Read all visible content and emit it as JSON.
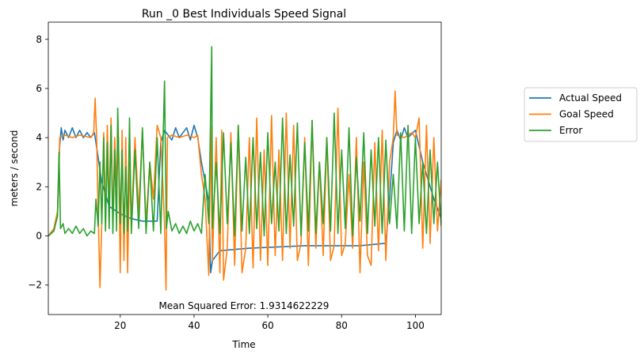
{
  "chart_data": {
    "type": "line",
    "title": "Run _0 Best Individuals Speed Signal",
    "xlabel": "Time",
    "ylabel": "meters / second",
    "xlim": [
      0.5,
      107
    ],
    "ylim": [
      -3.2,
      8.7
    ],
    "xticks": [
      20,
      40,
      60,
      80,
      100
    ],
    "yticks": [
      -2,
      0,
      2,
      4,
      6,
      8
    ],
    "grid": false,
    "legend_position": "right, outside plot",
    "annotation": "Mean Squared Error: 1.9314622229",
    "series": [
      {
        "name": "Actual Speed",
        "color": "#1f77b4",
        "points": [
          [
            0.5,
            0
          ],
          [
            2,
            0.2
          ],
          [
            3,
            0.9
          ],
          [
            3.5,
            3.5
          ],
          [
            4,
            4.4
          ],
          [
            4.5,
            3.9
          ],
          [
            5,
            4.3
          ],
          [
            6,
            4.0
          ],
          [
            7,
            4.4
          ],
          [
            8,
            4.0
          ],
          [
            9,
            4.3
          ],
          [
            10,
            4.0
          ],
          [
            11,
            4.2
          ],
          [
            12,
            4.0
          ],
          [
            13,
            4.2
          ],
          [
            14,
            3.2
          ],
          [
            15,
            2.2
          ],
          [
            17,
            1.2
          ],
          [
            20,
            0.9
          ],
          [
            23,
            0.7
          ],
          [
            26,
            0.6
          ],
          [
            30,
            0.6
          ],
          [
            31,
            3.8
          ],
          [
            32,
            4.3
          ],
          [
            34,
            3.9
          ],
          [
            35,
            4.4
          ],
          [
            36,
            4.0
          ],
          [
            38,
            4.4
          ],
          [
            39,
            3.9
          ],
          [
            40,
            4.5
          ],
          [
            41,
            4.0
          ],
          [
            42,
            3.0
          ],
          [
            43,
            2.2
          ],
          [
            44,
            1.4
          ],
          [
            44.5,
            -1.5
          ],
          [
            45,
            -1.0
          ],
          [
            47,
            -0.6
          ],
          [
            55,
            -0.5
          ],
          [
            70,
            -0.4
          ],
          [
            85,
            -0.4
          ],
          [
            92,
            -0.3
          ],
          [
            93,
            1.5
          ],
          [
            94,
            3.8
          ],
          [
            95,
            4.3
          ],
          [
            96,
            3.9
          ],
          [
            97,
            4.4
          ],
          [
            98,
            4.0
          ],
          [
            100,
            4.3
          ],
          [
            102,
            3.0
          ],
          [
            105,
            1.5
          ],
          [
            107,
            0.7
          ]
        ]
      },
      {
        "name": "Goal Speed",
        "color": "#ff7f0e",
        "points": [
          [
            0.5,
            0
          ],
          [
            2,
            0.3
          ],
          [
            3,
            1.0
          ],
          [
            3.4,
            2.5
          ],
          [
            3.6,
            4.0
          ],
          [
            5,
            4.1
          ],
          [
            7,
            4.0
          ],
          [
            9,
            4.1
          ],
          [
            12,
            4.0
          ],
          [
            12.8,
            4.2
          ],
          [
            13.2,
            5.6
          ],
          [
            13.6,
            4.0
          ],
          [
            14,
            1.0
          ],
          [
            14.5,
            -2.1
          ],
          [
            15,
            0.5
          ],
          [
            15.5,
            4.2
          ],
          [
            16,
            0.5
          ],
          [
            16.5,
            4.5
          ],
          [
            17,
            1.0
          ],
          [
            17.5,
            4.8
          ],
          [
            18,
            0.5
          ],
          [
            18.5,
            4.0
          ],
          [
            19,
            2.0
          ],
          [
            19.5,
            4.0
          ],
          [
            20,
            -1.5
          ],
          [
            20.5,
            4.3
          ],
          [
            21,
            -1.0
          ],
          [
            21.5,
            4.0
          ],
          [
            22,
            -1.5
          ],
          [
            22.5,
            3.0
          ],
          [
            23,
            0.5
          ],
          [
            24,
            4.0
          ],
          [
            25,
            1.0
          ],
          [
            26,
            4.3
          ],
          [
            27,
            0.5
          ],
          [
            28,
            3.0
          ],
          [
            29,
            1.5
          ],
          [
            30,
            4.5
          ],
          [
            31,
            4.0
          ],
          [
            32,
            0.5
          ],
          [
            32.4,
            -2.2
          ],
          [
            32.8,
            4.0
          ],
          [
            34,
            4.1
          ],
          [
            36,
            4.0
          ],
          [
            38,
            4.1
          ],
          [
            40,
            4.0
          ],
          [
            41,
            4.1
          ],
          [
            42,
            2.5
          ],
          [
            43,
            1.5
          ],
          [
            44,
            -1.6
          ],
          [
            44.5,
            4.5
          ],
          [
            45,
            -1.0
          ],
          [
            46,
            4.0
          ],
          [
            47,
            -1.5
          ],
          [
            47.5,
            4.3
          ],
          [
            48,
            -1.8
          ],
          [
            49,
            -0.5
          ],
          [
            50,
            4.2
          ],
          [
            51,
            -1.2
          ],
          [
            52,
            4.5
          ],
          [
            53,
            -1.5
          ],
          [
            54,
            -0.5
          ],
          [
            55,
            4.0
          ],
          [
            56,
            -1.3
          ],
          [
            57,
            4.8
          ],
          [
            58,
            -1.0
          ],
          [
            59,
            3.5
          ],
          [
            60,
            -1.2
          ],
          [
            61,
            4.9
          ],
          [
            62,
            -0.8
          ],
          [
            63,
            3.5
          ],
          [
            64,
            -1.0
          ],
          [
            65,
            5.0
          ],
          [
            66,
            -0.5
          ],
          [
            67,
            4.5
          ],
          [
            68,
            -1.0
          ],
          [
            69,
            -0.3
          ],
          [
            70,
            4.0
          ],
          [
            71,
            -1.2
          ],
          [
            72,
            4.7
          ],
          [
            73,
            -0.5
          ],
          [
            74,
            3.0
          ],
          [
            75,
            -0.8
          ],
          [
            76,
            4.0
          ],
          [
            77,
            -1.0
          ],
          [
            78,
            -0.4
          ],
          [
            79,
            5.2
          ],
          [
            80,
            -0.8
          ],
          [
            81,
            -0.3
          ],
          [
            82,
            2.5
          ],
          [
            83,
            -0.5
          ],
          [
            84,
            4.0
          ],
          [
            85,
            -1.5
          ],
          [
            86,
            3.0
          ],
          [
            87,
            -0.8
          ],
          [
            88,
            -1.2
          ],
          [
            89,
            3.8
          ],
          [
            90,
            -0.6
          ],
          [
            91,
            4.3
          ],
          [
            92,
            -1.0
          ],
          [
            93,
            3.0
          ],
          [
            94,
            4.0
          ],
          [
            94.5,
            5.9
          ],
          [
            95,
            4.1
          ],
          [
            97,
            4.0
          ],
          [
            99,
            4.2
          ],
          [
            100,
            4.0
          ],
          [
            101,
            4.8
          ],
          [
            102,
            -0.5
          ],
          [
            103,
            4.5
          ],
          [
            104,
            -0.3
          ],
          [
            105,
            4.0
          ],
          [
            106,
            0.2
          ],
          [
            107,
            2.3
          ]
        ]
      },
      {
        "name": "Error",
        "color": "#2ca02c",
        "points": [
          [
            0.5,
            0
          ],
          [
            2,
            0.2
          ],
          [
            3,
            0.8
          ],
          [
            3.4,
            3.4
          ],
          [
            3.8,
            0.3
          ],
          [
            4.5,
            0.5
          ],
          [
            5,
            0.1
          ],
          [
            6,
            0.3
          ],
          [
            7,
            0.1
          ],
          [
            8,
            0.4
          ],
          [
            9,
            0.1
          ],
          [
            10,
            0.3
          ],
          [
            11,
            0.0
          ],
          [
            12,
            0.2
          ],
          [
            13,
            0.1
          ],
          [
            13.4,
            1.5
          ],
          [
            14,
            0.4
          ],
          [
            14.5,
            3.0
          ],
          [
            15,
            0.5
          ],
          [
            15.5,
            4.0
          ],
          [
            16,
            0.2
          ],
          [
            16.5,
            3.8
          ],
          [
            17,
            0.3
          ],
          [
            17.5,
            4.5
          ],
          [
            18,
            0.1
          ],
          [
            18.5,
            3.5
          ],
          [
            19,
            0.2
          ],
          [
            19.3,
            5.2
          ],
          [
            20,
            0.5
          ],
          [
            20.5,
            3.5
          ],
          [
            21,
            0.1
          ],
          [
            21.5,
            2.8
          ],
          [
            22,
            0.2
          ],
          [
            22.5,
            4.8
          ],
          [
            23,
            0.1
          ],
          [
            24,
            3.5
          ],
          [
            25,
            0.3
          ],
          [
            26,
            4.4
          ],
          [
            27,
            0.1
          ],
          [
            28,
            3.0
          ],
          [
            29,
            0.2
          ],
          [
            30,
            4.0
          ],
          [
            31,
            0.1
          ],
          [
            32,
            6.3
          ],
          [
            32.5,
            0.3
          ],
          [
            33,
            1.0
          ],
          [
            34,
            0.2
          ],
          [
            35,
            0.5
          ],
          [
            36,
            0.1
          ],
          [
            37,
            0.4
          ],
          [
            38,
            0.1
          ],
          [
            39,
            0.6
          ],
          [
            40,
            0.2
          ],
          [
            41,
            0.5
          ],
          [
            42,
            0.1
          ],
          [
            43,
            2.5
          ],
          [
            44,
            0.5
          ],
          [
            44.8,
            7.7
          ],
          [
            45,
            0.3
          ],
          [
            46,
            3.0
          ],
          [
            47,
            0.1
          ],
          [
            48,
            4.2
          ],
          [
            49,
            0.5
          ],
          [
            50,
            3.8
          ],
          [
            51,
            0.0
          ],
          [
            52,
            4.5
          ],
          [
            53,
            0.2
          ],
          [
            54,
            3.2
          ],
          [
            55,
            0.1
          ],
          [
            56,
            4.0
          ],
          [
            57,
            0.3
          ],
          [
            58,
            3.4
          ],
          [
            59,
            0.0
          ],
          [
            60,
            4.2
          ],
          [
            61,
            0.5
          ],
          [
            62,
            3.0
          ],
          [
            63,
            0.2
          ],
          [
            64,
            4.8
          ],
          [
            65,
            0.1
          ],
          [
            66,
            3.3
          ],
          [
            67,
            0.4
          ],
          [
            68,
            4.6
          ],
          [
            69,
            0.0
          ],
          [
            70,
            3.8
          ],
          [
            71,
            0.2
          ],
          [
            72,
            4.7
          ],
          [
            73,
            0.1
          ],
          [
            74,
            3.0
          ],
          [
            75,
            0.5
          ],
          [
            76,
            4.0
          ],
          [
            77,
            0.2
          ],
          [
            78,
            5.0
          ],
          [
            79,
            0.1
          ],
          [
            80,
            3.5
          ],
          [
            81,
            0.3
          ],
          [
            82,
            4.4
          ],
          [
            83,
            0.0
          ],
          [
            84,
            3.2
          ],
          [
            85,
            0.6
          ],
          [
            86,
            4.2
          ],
          [
            87,
            0.1
          ],
          [
            88,
            3.5
          ],
          [
            89,
            0.4
          ],
          [
            90,
            4.0
          ],
          [
            91,
            0.1
          ],
          [
            92,
            3.9
          ],
          [
            93,
            0.5
          ],
          [
            94,
            2.5
          ],
          [
            95,
            0.3
          ],
          [
            96,
            4.2
          ],
          [
            97,
            0.2
          ],
          [
            98,
            4.5
          ],
          [
            99,
            0.1
          ],
          [
            100,
            4.0
          ],
          [
            101,
            0.5
          ],
          [
            102,
            3.0
          ],
          [
            103,
            0.1
          ],
          [
            104,
            3.5
          ],
          [
            105,
            0.5
          ],
          [
            106,
            3.0
          ],
          [
            107,
            0.4
          ]
        ]
      }
    ]
  }
}
